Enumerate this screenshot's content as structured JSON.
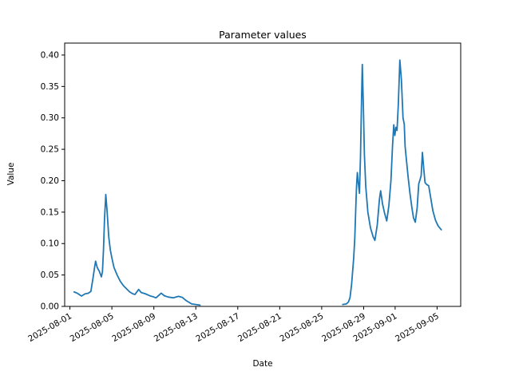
{
  "chart_data": {
    "type": "line",
    "title": "Parameter values",
    "xlabel": "Date",
    "ylabel": "Value",
    "line_color": "#1f77b4",
    "background": "#ffffff",
    "grid": false,
    "legend": null,
    "x_epoch_date": "2025-08-01",
    "xlim_days": [
      -0.5,
      37.25
    ],
    "ylim": [
      0,
      0.419
    ],
    "yticks": [
      {
        "value": 0.0,
        "label": "0.00"
      },
      {
        "value": 0.05,
        "label": "0.05"
      },
      {
        "value": 0.1,
        "label": "0.10"
      },
      {
        "value": 0.15,
        "label": "0.15"
      },
      {
        "value": 0.2,
        "label": "0.20"
      },
      {
        "value": 0.25,
        "label": "0.25"
      },
      {
        "value": 0.3,
        "label": "0.30"
      },
      {
        "value": 0.35,
        "label": "0.35"
      },
      {
        "value": 0.4,
        "label": "0.40"
      }
    ],
    "xticks": [
      {
        "day": 0,
        "label": "2025-08-01"
      },
      {
        "day": 4,
        "label": "2025-08-05"
      },
      {
        "day": 8,
        "label": "2025-08-09"
      },
      {
        "day": 12,
        "label": "2025-08-13"
      },
      {
        "day": 16,
        "label": "2025-08-17"
      },
      {
        "day": 20,
        "label": "2025-08-21"
      },
      {
        "day": 24,
        "label": "2025-08-25"
      },
      {
        "day": 28,
        "label": "2025-08-29"
      },
      {
        "day": 31,
        "label": "2025-09-01"
      },
      {
        "day": 35,
        "label": "2025-09-05"
      }
    ],
    "series_note": "x = days since 2025-08-01; line has a gap between the two segments",
    "segments": [
      {
        "points": [
          [
            0.4,
            0.023
          ],
          [
            0.7,
            0.021
          ],
          [
            1.1,
            0.0165
          ],
          [
            1.45,
            0.02
          ],
          [
            1.75,
            0.021
          ],
          [
            2.0,
            0.024
          ],
          [
            2.2,
            0.045
          ],
          [
            2.35,
            0.062
          ],
          [
            2.45,
            0.072
          ],
          [
            2.6,
            0.062
          ],
          [
            2.8,
            0.056
          ],
          [
            3.0,
            0.047
          ],
          [
            3.1,
            0.055
          ],
          [
            3.2,
            0.09
          ],
          [
            3.3,
            0.14
          ],
          [
            3.42,
            0.178
          ],
          [
            3.55,
            0.15
          ],
          [
            3.7,
            0.111
          ],
          [
            3.85,
            0.09
          ],
          [
            4.0,
            0.077
          ],
          [
            4.2,
            0.062
          ],
          [
            4.5,
            0.05
          ],
          [
            4.8,
            0.04
          ],
          [
            5.1,
            0.033
          ],
          [
            5.4,
            0.028
          ],
          [
            5.7,
            0.023
          ],
          [
            6.0,
            0.02
          ],
          [
            6.2,
            0.019
          ],
          [
            6.55,
            0.027
          ],
          [
            6.8,
            0.022
          ],
          [
            7.2,
            0.02
          ],
          [
            7.6,
            0.017
          ],
          [
            8.0,
            0.015
          ],
          [
            8.2,
            0.0136
          ],
          [
            8.7,
            0.021
          ],
          [
            9.0,
            0.017
          ],
          [
            9.35,
            0.015
          ],
          [
            9.85,
            0.0136
          ],
          [
            10.35,
            0.016
          ],
          [
            10.7,
            0.0145
          ],
          [
            11.1,
            0.009
          ],
          [
            11.6,
            0.004
          ],
          [
            12.0,
            0.003
          ],
          [
            12.4,
            0.002
          ]
        ]
      },
      {
        "points": [
          [
            26.0,
            0.003
          ],
          [
            26.35,
            0.004
          ],
          [
            26.55,
            0.007
          ],
          [
            26.7,
            0.014
          ],
          [
            26.85,
            0.035
          ],
          [
            26.95,
            0.056
          ],
          [
            27.05,
            0.077
          ],
          [
            27.15,
            0.107
          ],
          [
            27.25,
            0.157
          ],
          [
            27.32,
            0.191
          ],
          [
            27.4,
            0.213
          ],
          [
            27.5,
            0.195
          ],
          [
            27.6,
            0.18
          ],
          [
            27.7,
            0.24
          ],
          [
            27.8,
            0.33
          ],
          [
            27.87,
            0.385
          ],
          [
            27.97,
            0.32
          ],
          [
            28.07,
            0.242
          ],
          [
            28.2,
            0.191
          ],
          [
            28.4,
            0.15
          ],
          [
            28.65,
            0.125
          ],
          [
            28.9,
            0.111
          ],
          [
            29.07,
            0.105
          ],
          [
            29.3,
            0.13
          ],
          [
            29.5,
            0.17
          ],
          [
            29.62,
            0.184
          ],
          [
            29.8,
            0.163
          ],
          [
            30.0,
            0.148
          ],
          [
            30.2,
            0.136
          ],
          [
            30.4,
            0.16
          ],
          [
            30.6,
            0.2
          ],
          [
            30.75,
            0.255
          ],
          [
            30.87,
            0.289
          ],
          [
            30.97,
            0.272
          ],
          [
            31.08,
            0.285
          ],
          [
            31.18,
            0.28
          ],
          [
            31.3,
            0.32
          ],
          [
            31.45,
            0.392
          ],
          [
            31.6,
            0.36
          ],
          [
            31.75,
            0.3
          ],
          [
            31.87,
            0.29
          ],
          [
            31.95,
            0.255
          ],
          [
            32.1,
            0.229
          ],
          [
            32.25,
            0.204
          ],
          [
            32.42,
            0.179
          ],
          [
            32.6,
            0.157
          ],
          [
            32.75,
            0.141
          ],
          [
            32.92,
            0.134
          ],
          [
            33.1,
            0.157
          ],
          [
            33.25,
            0.195
          ],
          [
            33.38,
            0.202
          ],
          [
            33.48,
            0.208
          ],
          [
            33.6,
            0.245
          ],
          [
            33.75,
            0.215
          ],
          [
            33.85,
            0.197
          ],
          [
            34.0,
            0.194
          ],
          [
            34.2,
            0.192
          ],
          [
            34.4,
            0.172
          ],
          [
            34.6,
            0.152
          ],
          [
            34.85,
            0.137
          ],
          [
            35.1,
            0.128
          ],
          [
            35.4,
            0.122
          ]
        ]
      }
    ]
  }
}
